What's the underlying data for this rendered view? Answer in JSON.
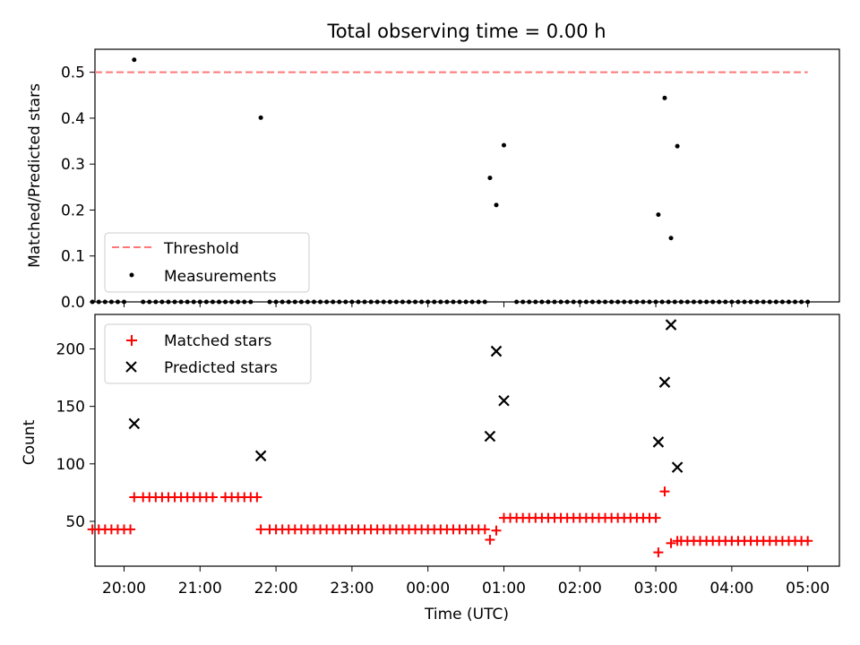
{
  "chart_data": [
    {
      "type": "scatter",
      "title": "Total observing time = 0.00 h",
      "xlabel": "",
      "ylabel": "Matched/Predicted stars",
      "xlim": [
        "19:37",
        "05:25"
      ],
      "ylim": [
        0,
        0.55
      ],
      "y_ticks": [
        "0.0",
        "0.1",
        "0.2",
        "0.3",
        "0.4",
        "0.5"
      ],
      "legend": {
        "placement": "lower left"
      },
      "threshold": {
        "name": "Threshold",
        "value": 0.5,
        "x_start": "19:37",
        "x_end": "05:00",
        "color": "#ff7777",
        "style": "dashed"
      },
      "series": [
        {
          "name": "Measurements",
          "color": "#000000",
          "marker": "dot",
          "points": [
            [
              "19:35",
              0
            ],
            [
              "19:40",
              0
            ],
            [
              "19:45",
              0
            ],
            [
              "19:50",
              0
            ],
            [
              "19:55",
              0
            ],
            [
              "20:00",
              0
            ],
            [
              "20:08",
              0.527
            ],
            [
              "20:15",
              0
            ],
            [
              "20:20",
              0
            ],
            [
              "20:25",
              0
            ],
            [
              "20:30",
              0
            ],
            [
              "20:35",
              0
            ],
            [
              "20:40",
              0
            ],
            [
              "20:45",
              0
            ],
            [
              "20:50",
              0
            ],
            [
              "20:55",
              0
            ],
            [
              "21:00",
              0
            ],
            [
              "21:05",
              0
            ],
            [
              "21:10",
              0
            ],
            [
              "21:15",
              0
            ],
            [
              "21:20",
              0
            ],
            [
              "21:25",
              0
            ],
            [
              "21:30",
              0
            ],
            [
              "21:35",
              0
            ],
            [
              "21:40",
              0
            ],
            [
              "21:48",
              0.401
            ],
            [
              "21:55",
              0
            ],
            [
              "22:00",
              0
            ],
            [
              "22:05",
              0
            ],
            [
              "22:10",
              0
            ],
            [
              "22:15",
              0
            ],
            [
              "22:20",
              0
            ],
            [
              "22:25",
              0
            ],
            [
              "22:30",
              0
            ],
            [
              "22:35",
              0
            ],
            [
              "22:40",
              0
            ],
            [
              "22:45",
              0
            ],
            [
              "22:50",
              0
            ],
            [
              "22:55",
              0
            ],
            [
              "23:00",
              0
            ],
            [
              "23:05",
              0
            ],
            [
              "23:10",
              0
            ],
            [
              "23:15",
              0
            ],
            [
              "23:20",
              0
            ],
            [
              "23:25",
              0
            ],
            [
              "23:30",
              0
            ],
            [
              "23:35",
              0
            ],
            [
              "23:40",
              0
            ],
            [
              "23:45",
              0
            ],
            [
              "23:50",
              0
            ],
            [
              "23:55",
              0
            ],
            [
              "00:00",
              0
            ],
            [
              "00:05",
              0
            ],
            [
              "00:10",
              0
            ],
            [
              "00:15",
              0
            ],
            [
              "00:20",
              0
            ],
            [
              "00:25",
              0
            ],
            [
              "00:30",
              0
            ],
            [
              "00:35",
              0
            ],
            [
              "00:40",
              0
            ],
            [
              "00:45",
              0
            ],
            [
              "00:49",
              0.27
            ],
            [
              "00:54",
              0.211
            ],
            [
              "01:00",
              0.341
            ],
            [
              "01:10",
              0
            ],
            [
              "01:15",
              0
            ],
            [
              "01:20",
              0
            ],
            [
              "01:25",
              0
            ],
            [
              "01:30",
              0
            ],
            [
              "01:35",
              0
            ],
            [
              "01:40",
              0
            ],
            [
              "01:45",
              0
            ],
            [
              "01:50",
              0
            ],
            [
              "01:55",
              0
            ],
            [
              "02:00",
              0
            ],
            [
              "02:05",
              0
            ],
            [
              "02:10",
              0
            ],
            [
              "02:15",
              0
            ],
            [
              "02:20",
              0
            ],
            [
              "02:25",
              0
            ],
            [
              "02:30",
              0
            ],
            [
              "02:35",
              0
            ],
            [
              "02:40",
              0
            ],
            [
              "02:45",
              0
            ],
            [
              "02:50",
              0
            ],
            [
              "02:55",
              0
            ],
            [
              "03:00",
              0
            ],
            [
              "03:05",
              0
            ],
            [
              "03:10",
              0
            ],
            [
              "03:15",
              0
            ],
            [
              "03:20",
              0
            ],
            [
              "03:25",
              0
            ],
            [
              "03:30",
              0
            ],
            [
              "03:35",
              0
            ],
            [
              "03:02",
              0.19
            ],
            [
              "03:07",
              0.444
            ],
            [
              "03:12",
              0.139
            ],
            [
              "03:17",
              0.339
            ],
            [
              "03:40",
              0
            ],
            [
              "03:45",
              0
            ],
            [
              "03:50",
              0
            ],
            [
              "03:55",
              0
            ],
            [
              "04:00",
              0
            ],
            [
              "04:05",
              0
            ],
            [
              "04:10",
              0
            ],
            [
              "04:15",
              0
            ],
            [
              "04:20",
              0
            ],
            [
              "04:25",
              0
            ],
            [
              "04:30",
              0
            ],
            [
              "04:35",
              0
            ],
            [
              "04:40",
              0
            ],
            [
              "04:45",
              0
            ],
            [
              "04:50",
              0
            ],
            [
              "04:55",
              0
            ],
            [
              "05:00",
              0
            ]
          ]
        }
      ]
    },
    {
      "type": "scatter",
      "title": "",
      "xlabel": "Time (UTC)",
      "ylabel": "Count",
      "x_ticks": [
        "20:00",
        "21:00",
        "22:00",
        "23:00",
        "00:00",
        "01:00",
        "02:00",
        "03:00",
        "04:00",
        "05:00"
      ],
      "y_ticks": [
        "50",
        "100",
        "150",
        "200"
      ],
      "xlim": [
        "19:37",
        "05:25"
      ],
      "ylim": [
        11,
        230
      ],
      "legend": {
        "placement": "upper left"
      },
      "series": [
        {
          "name": "Matched stars",
          "color": "#ff0000",
          "marker": "plus",
          "points": [
            [
              "19:35",
              43
            ],
            [
              "19:40",
              43
            ],
            [
              "19:45",
              43
            ],
            [
              "19:50",
              43
            ],
            [
              "19:55",
              43
            ],
            [
              "20:00",
              43
            ],
            [
              "20:05",
              43
            ],
            [
              "20:08",
              71
            ],
            [
              "20:15",
              71
            ],
            [
              "20:20",
              71
            ],
            [
              "20:25",
              71
            ],
            [
              "20:30",
              71
            ],
            [
              "20:35",
              71
            ],
            [
              "20:40",
              71
            ],
            [
              "20:45",
              71
            ],
            [
              "20:50",
              71
            ],
            [
              "20:55",
              71
            ],
            [
              "21:00",
              71
            ],
            [
              "21:05",
              71
            ],
            [
              "21:10",
              71
            ],
            [
              "21:20",
              71
            ],
            [
              "21:25",
              71
            ],
            [
              "21:30",
              71
            ],
            [
              "21:35",
              71
            ],
            [
              "21:40",
              71
            ],
            [
              "21:45",
              71
            ],
            [
              "21:48",
              43
            ],
            [
              "21:55",
              43
            ],
            [
              "22:00",
              43
            ],
            [
              "22:05",
              43
            ],
            [
              "22:10",
              43
            ],
            [
              "22:15",
              43
            ],
            [
              "22:20",
              43
            ],
            [
              "22:25",
              43
            ],
            [
              "22:30",
              43
            ],
            [
              "22:35",
              43
            ],
            [
              "22:40",
              43
            ],
            [
              "22:45",
              43
            ],
            [
              "22:50",
              43
            ],
            [
              "22:55",
              43
            ],
            [
              "23:00",
              43
            ],
            [
              "23:05",
              43
            ],
            [
              "23:10",
              43
            ],
            [
              "23:15",
              43
            ],
            [
              "23:20",
              43
            ],
            [
              "23:25",
              43
            ],
            [
              "23:30",
              43
            ],
            [
              "23:35",
              43
            ],
            [
              "23:40",
              43
            ],
            [
              "23:45",
              43
            ],
            [
              "23:50",
              43
            ],
            [
              "23:55",
              43
            ],
            [
              "00:00",
              43
            ],
            [
              "00:05",
              43
            ],
            [
              "00:10",
              43
            ],
            [
              "00:15",
              43
            ],
            [
              "00:20",
              43
            ],
            [
              "00:25",
              43
            ],
            [
              "00:30",
              43
            ],
            [
              "00:35",
              43
            ],
            [
              "00:40",
              43
            ],
            [
              "00:45",
              43
            ],
            [
              "00:49",
              34
            ],
            [
              "00:54",
              42
            ],
            [
              "01:00",
              53
            ],
            [
              "01:05",
              53
            ],
            [
              "01:10",
              53
            ],
            [
              "01:15",
              53
            ],
            [
              "01:20",
              53
            ],
            [
              "01:25",
              53
            ],
            [
              "01:30",
              53
            ],
            [
              "01:35",
              53
            ],
            [
              "01:40",
              53
            ],
            [
              "01:45",
              53
            ],
            [
              "01:50",
              53
            ],
            [
              "01:55",
              53
            ],
            [
              "02:00",
              53
            ],
            [
              "02:05",
              53
            ],
            [
              "02:10",
              53
            ],
            [
              "02:15",
              53
            ],
            [
              "02:20",
              53
            ],
            [
              "02:25",
              53
            ],
            [
              "02:30",
              53
            ],
            [
              "02:35",
              53
            ],
            [
              "02:40",
              53
            ],
            [
              "02:45",
              53
            ],
            [
              "02:50",
              53
            ],
            [
              "02:55",
              53
            ],
            [
              "03:00",
              53
            ],
            [
              "03:02",
              23
            ],
            [
              "03:07",
              76
            ],
            [
              "03:12",
              31
            ],
            [
              "03:17",
              33
            ],
            [
              "03:20",
              33
            ],
            [
              "03:25",
              33
            ],
            [
              "03:30",
              33
            ],
            [
              "03:35",
              33
            ],
            [
              "03:40",
              33
            ],
            [
              "03:45",
              33
            ],
            [
              "03:50",
              33
            ],
            [
              "03:55",
              33
            ],
            [
              "04:00",
              33
            ],
            [
              "04:05",
              33
            ],
            [
              "04:10",
              33
            ],
            [
              "04:15",
              33
            ],
            [
              "04:20",
              33
            ],
            [
              "04:25",
              33
            ],
            [
              "04:30",
              33
            ],
            [
              "04:35",
              33
            ],
            [
              "04:40",
              33
            ],
            [
              "04:45",
              33
            ],
            [
              "04:50",
              33
            ],
            [
              "04:55",
              33
            ],
            [
              "05:00",
              33
            ]
          ]
        },
        {
          "name": "Predicted stars",
          "color": "#000000",
          "marker": "x",
          "points": [
            [
              "20:08",
              135
            ],
            [
              "21:48",
              107
            ],
            [
              "00:49",
              124
            ],
            [
              "00:54",
              198
            ],
            [
              "01:00",
              155
            ],
            [
              "03:02",
              119
            ],
            [
              "03:07",
              171
            ],
            [
              "03:12",
              221
            ],
            [
              "03:17",
              97
            ]
          ]
        }
      ]
    }
  ]
}
